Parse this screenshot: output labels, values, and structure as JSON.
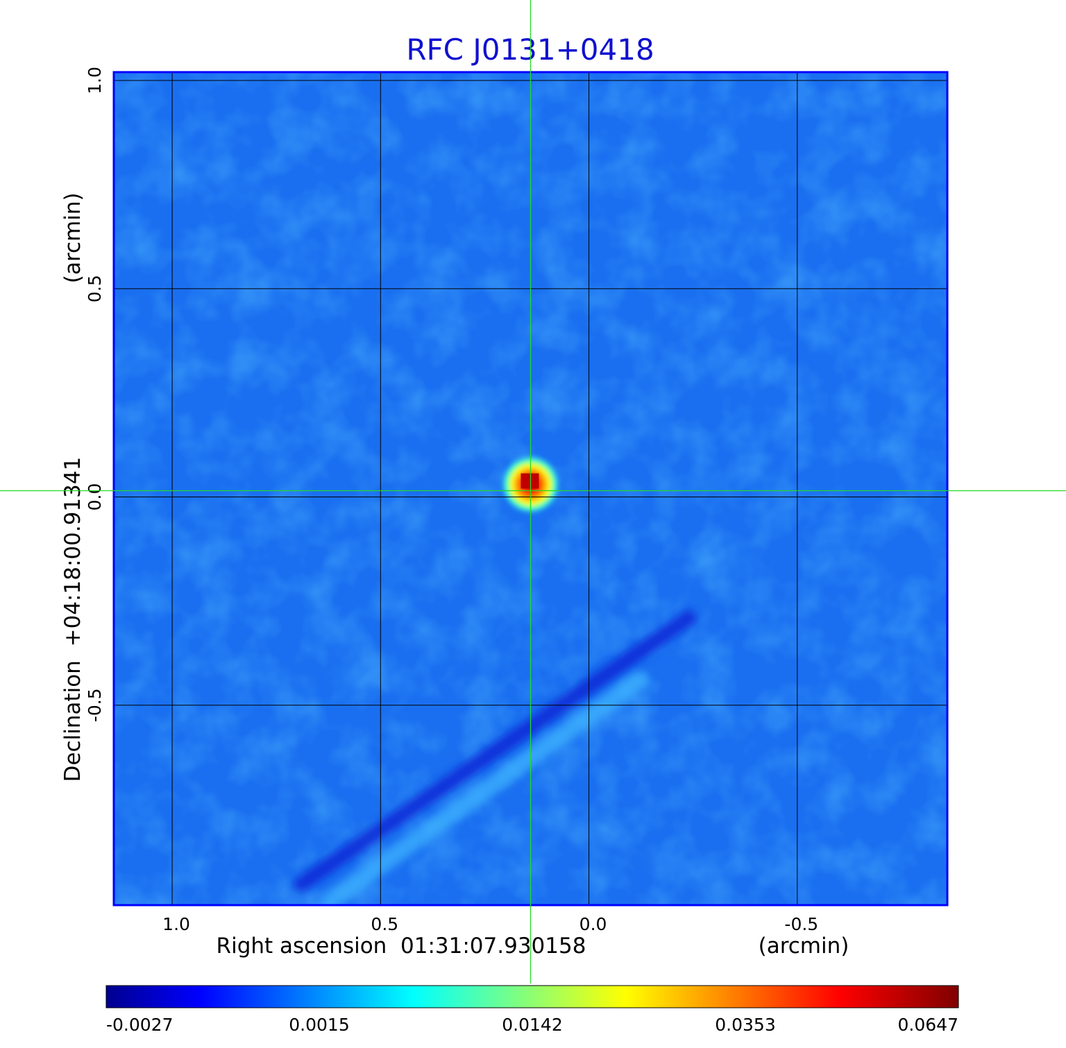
{
  "chart_data": {
    "type": "heatmap",
    "title": "RFC J0131+0418",
    "xlabel": "Right ascension  01:31:07.930158",
    "xunit": "(arcmin)",
    "ylabel": "Declination  +04:18:00.91341",
    "yunit": "(arcmin)",
    "xlim": [
      1.14,
      -0.86
    ],
    "ylim": [
      -0.98,
      1.02
    ],
    "x_ticks": [
      1.0,
      0.5,
      0.0,
      -0.5
    ],
    "x_tick_labels": [
      "1.0",
      "0.5",
      "0.0",
      "-0.5"
    ],
    "y_ticks": [
      -0.5,
      0.0,
      0.5,
      1.0
    ],
    "y_tick_labels": [
      "-0.5",
      "0.0",
      "0.5",
      "1.0"
    ],
    "grid": true,
    "crosshair": {
      "x": 0.14,
      "y": 0.015,
      "color": "#22dd22"
    },
    "sources": [
      {
        "name": "peak",
        "x": 0.14,
        "y": 0.04,
        "value": 0.0647
      }
    ],
    "features": [
      {
        "type": "negative-streak",
        "from": [
          0.69,
          -0.93
        ],
        "to": [
          -0.24,
          -0.29
        ],
        "value": -0.0027
      },
      {
        "type": "positive-streak",
        "from": [
          0.62,
          -0.97
        ],
        "to": [
          -0.12,
          -0.44
        ],
        "value": 0.0015
      }
    ],
    "colorbar": {
      "colormap": "jet",
      "tick_labels": [
        "-0.0027",
        "0.0015",
        "0.0142",
        "0.0353",
        "0.0647"
      ],
      "tick_values": [
        -0.0027,
        0.0015,
        0.0142,
        0.0353,
        0.0647
      ]
    }
  },
  "colors": {
    "title": "#1010d0",
    "frame": "#0000ff",
    "grid": "#000000",
    "crosshair": "#22dd22",
    "background_map": "#1a70ee"
  }
}
